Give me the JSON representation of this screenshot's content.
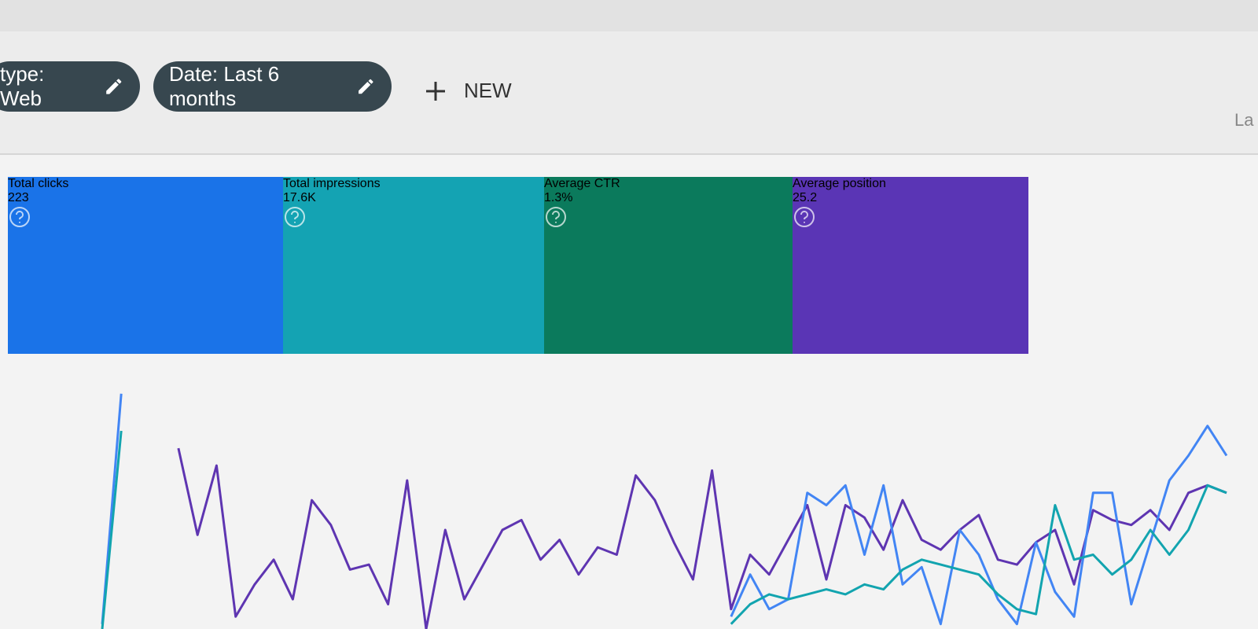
{
  "toolbar": {
    "filters": [
      "type: Web",
      "Date: Last 6 months"
    ],
    "new_button": "NEW",
    "right_label": "La"
  },
  "metrics": [
    {
      "label": "Total clicks",
      "value": "223",
      "color": "#1a73e8"
    },
    {
      "label": "Total impressions",
      "value": "17.6K",
      "color": "#14a3b3"
    },
    {
      "label": "Average CTR",
      "value": "1.3%",
      "color": "#0b7a5c"
    },
    {
      "label": "Average position",
      "value": "25.2",
      "color": "#5a35b5"
    }
  ],
  "chart": {
    "ylim": [
      0,
      100
    ],
    "series": [
      {
        "color": "#5e35b1",
        "values": [
          null,
          null,
          null,
          null,
          73,
          38,
          66,
          5,
          18,
          28,
          12,
          52,
          42,
          24,
          26,
          10,
          60,
          0,
          40,
          12,
          26,
          40,
          44,
          28,
          36,
          22,
          33,
          30,
          62,
          52,
          35,
          20,
          64,
          8,
          30,
          22,
          36,
          50,
          20,
          50,
          45,
          32,
          52,
          36,
          32,
          40,
          46,
          28,
          26,
          35,
          40,
          18,
          48,
          44,
          42,
          48,
          40,
          55,
          58,
          55
        ]
      },
      {
        "color": "#4285f4",
        "values": [
          2,
          95,
          null,
          null,
          null,
          null,
          null,
          null,
          null,
          null,
          null,
          null,
          null,
          null,
          null,
          null,
          null,
          null,
          null,
          null,
          null,
          null,
          null,
          null,
          null,
          null,
          null,
          null,
          null,
          null,
          null,
          null,
          null,
          5,
          22,
          8,
          12,
          55,
          50,
          58,
          30,
          58,
          18,
          25,
          2,
          40,
          30,
          12,
          2,
          35,
          15,
          5,
          55,
          55,
          10,
          35,
          60,
          70,
          82,
          70
        ]
      },
      {
        "color": "#12a4af",
        "values": [
          0,
          80,
          null,
          null,
          null,
          null,
          null,
          null,
          null,
          null,
          null,
          null,
          null,
          null,
          null,
          null,
          null,
          null,
          null,
          null,
          null,
          null,
          null,
          null,
          null,
          null,
          null,
          null,
          null,
          null,
          null,
          null,
          null,
          2,
          10,
          14,
          12,
          14,
          16,
          14,
          18,
          16,
          24,
          28,
          26,
          24,
          22,
          14,
          8,
          6,
          50,
          28,
          30,
          22,
          28,
          40,
          30,
          40,
          58,
          55
        ]
      }
    ]
  }
}
